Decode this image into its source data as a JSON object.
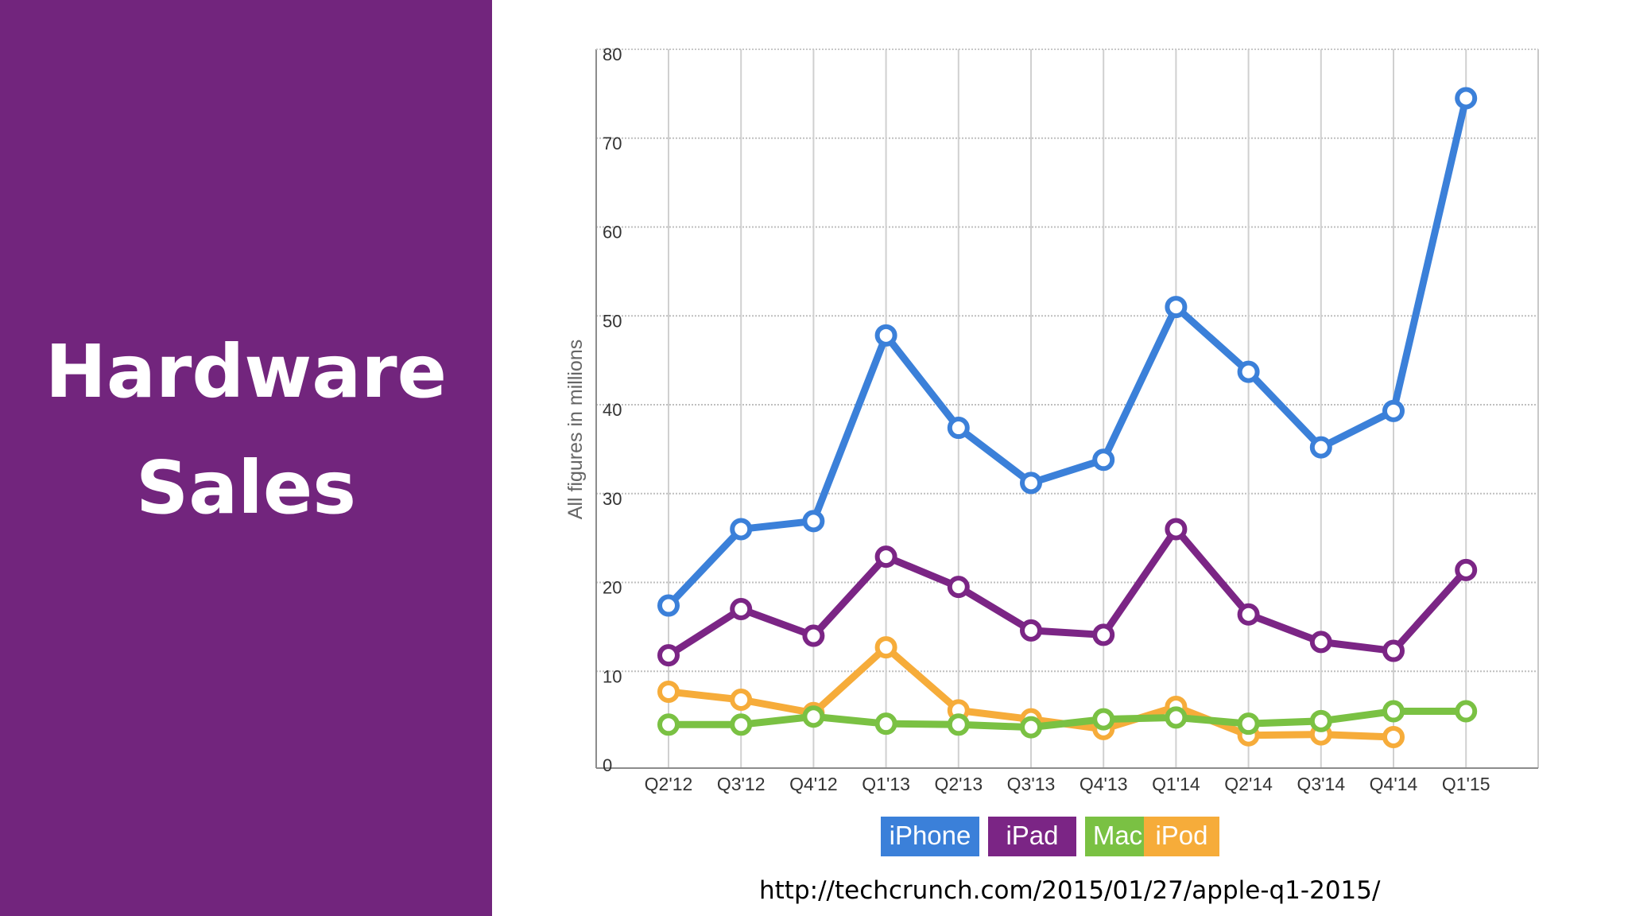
{
  "slide": {
    "title_line1": "Hardware",
    "title_line2": "Sales",
    "source": "http://techcrunch.com/2015/01/27/apple-q1-2015/",
    "sidebar_color": "#72257d"
  },
  "chart_data": {
    "type": "line",
    "title": "",
    "xlabel": "",
    "ylabel": "All figures in millions",
    "ylim": [
      0,
      80
    ],
    "yticks": [
      0,
      10,
      20,
      30,
      40,
      50,
      60,
      70,
      80
    ],
    "grid": true,
    "legend_position": "bottom-center",
    "categories": [
      "Q2'12",
      "Q3'12",
      "Q4'12",
      "Q1'13",
      "Q2'13",
      "Q3'13",
      "Q4'13",
      "Q1'14",
      "Q2'14",
      "Q3'14",
      "Q4'14",
      "Q1'15"
    ],
    "series": [
      {
        "name": "iPhone",
        "color": "#3b80d9",
        "values": [
          17.4,
          26,
          26.9,
          47.8,
          37.4,
          31.2,
          33.8,
          51,
          43.7,
          35.2,
          39.3,
          74.5
        ]
      },
      {
        "name": "iPad",
        "color": "#7b2585",
        "values": [
          11.8,
          17,
          14,
          22.9,
          19.5,
          14.6,
          14.1,
          26,
          16.4,
          13.3,
          12.3,
          21.4
        ]
      },
      {
        "name": "Mac",
        "color": "#7ac143",
        "values": [
          4,
          4,
          4.9,
          4.1,
          4,
          3.7,
          4.6,
          4.8,
          4.1,
          4.4,
          5.5,
          5.5
        ]
      },
      {
        "name": "iPod",
        "color": "#f6ac3a",
        "values": [
          7.7,
          6.8,
          5.3,
          12.7,
          5.6,
          4.6,
          3.5,
          6,
          2.8,
          2.9,
          2.6,
          null
        ]
      }
    ]
  }
}
